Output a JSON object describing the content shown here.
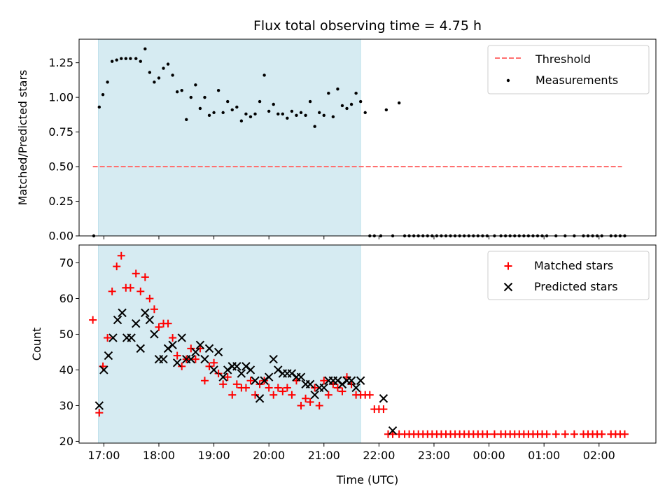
{
  "chart_data": [
    {
      "type": "scatter",
      "title": "Flux total observing time = 4.75 h",
      "xlabel": "",
      "ylabel": "Matched/Predicted stars",
      "xlim": [
        "16:33",
        "03:02"
      ],
      "ylim": [
        0,
        1.42
      ],
      "yticks": [
        "0.00",
        "0.25",
        "0.50",
        "0.75",
        "1.00",
        "1.25"
      ],
      "shaded_span": [
        "16:54",
        "21:40"
      ],
      "shade_color": "#add8e6",
      "legend_position": "top-right",
      "legend": [
        {
          "label": "Threshold",
          "marker": "dashed-line",
          "color": "#ff7070"
        },
        {
          "label": "Measurements",
          "marker": "dot",
          "color": "#000000"
        }
      ],
      "threshold": {
        "name": "Threshold",
        "value": 0.5,
        "x": [
          "16:48",
          "02:25"
        ],
        "color": "#ff7070"
      },
      "series": [
        {
          "name": "Measurements",
          "color": "#000000",
          "x": [
            "16:49",
            "16:55",
            "16:59",
            "17:04",
            "17:09",
            "17:14",
            "17:19",
            "17:24",
            "17:29",
            "17:35",
            "17:40",
            "17:45",
            "17:50",
            "17:55",
            "18:00",
            "18:05",
            "18:10",
            "18:15",
            "18:20",
            "18:25",
            "18:30",
            "18:35",
            "18:40",
            "18:45",
            "18:50",
            "18:55",
            "19:00",
            "19:05",
            "19:10",
            "19:15",
            "19:20",
            "19:25",
            "19:30",
            "19:35",
            "19:40",
            "19:45",
            "19:50",
            "19:55",
            "20:00",
            "20:05",
            "20:10",
            "20:15",
            "20:20",
            "20:25",
            "20:30",
            "20:35",
            "20:40",
            "20:45",
            "20:50",
            "20:55",
            "21:00",
            "21:05",
            "21:10",
            "21:15",
            "21:20",
            "21:25",
            "21:30",
            "21:35",
            "21:40",
            "21:45",
            "21:50",
            "21:55",
            "22:02",
            "22:08",
            "22:15",
            "22:22",
            "22:28",
            "22:33",
            "22:38",
            "22:43",
            "22:48",
            "22:53",
            "22:58",
            "23:03",
            "23:08",
            "23:13",
            "23:18",
            "23:23",
            "23:28",
            "23:33",
            "23:38",
            "23:43",
            "23:48",
            "23:53",
            "23:58",
            "00:06",
            "00:13",
            "00:18",
            "00:23",
            "00:28",
            "00:33",
            "00:38",
            "00:43",
            "00:48",
            "00:53",
            "00:58",
            "01:03",
            "01:13",
            "01:23",
            "01:33",
            "01:43",
            "01:48",
            "01:53",
            "01:58",
            "02:03",
            "02:13",
            "02:18",
            "02:23",
            "02:28"
          ],
          "y": [
            0.0,
            0.93,
            1.02,
            1.11,
            1.26,
            1.27,
            1.28,
            1.28,
            1.28,
            1.28,
            1.26,
            1.35,
            1.18,
            1.11,
            1.14,
            1.21,
            1.24,
            1.16,
            1.04,
            1.05,
            0.84,
            1.0,
            1.09,
            0.92,
            1.0,
            0.87,
            0.89,
            1.05,
            0.89,
            0.97,
            0.91,
            0.93,
            0.83,
            0.88,
            0.86,
            0.88,
            0.97,
            1.16,
            0.9,
            0.95,
            0.88,
            0.88,
            0.85,
            0.9,
            0.87,
            0.89,
            0.87,
            0.97,
            0.79,
            0.89,
            0.87,
            1.03,
            0.86,
            1.06,
            0.94,
            0.92,
            0.95,
            1.03,
            0.97,
            0.89,
            0.0,
            0.0,
            0.0,
            0.91,
            0.0,
            0.96,
            0.0,
            0.0,
            0.0,
            0.0,
            0.0,
            0.0,
            0.0,
            0.0,
            0.0,
            0.0,
            0.0,
            0.0,
            0.0,
            0.0,
            0.0,
            0.0,
            0.0,
            0.0,
            0.0,
            0.0,
            0.0,
            0.0,
            0.0,
            0.0,
            0.0,
            0.0,
            0.0,
            0.0,
            0.0,
            0.0,
            0.0,
            0.0,
            0.0,
            0.0,
            0.0,
            0.0,
            0.0,
            0.0,
            0.0,
            0.0,
            0.0,
            0.0,
            0.0
          ]
        }
      ]
    },
    {
      "type": "scatter",
      "title": "",
      "xlabel": "Time (UTC)",
      "ylabel": "Count",
      "xlim": [
        "16:33",
        "03:02"
      ],
      "ylim": [
        19.5,
        75
      ],
      "xticks": [
        "17:00",
        "18:00",
        "19:00",
        "20:00",
        "21:00",
        "22:00",
        "23:00",
        "00:00",
        "01:00",
        "02:00"
      ],
      "yticks": [
        "20",
        "30",
        "40",
        "50",
        "60",
        "70"
      ],
      "shaded_span": [
        "16:54",
        "21:40"
      ],
      "shade_color": "#add8e6",
      "legend_position": "top-right",
      "legend": [
        {
          "label": "Matched stars",
          "marker": "plus",
          "color": "#ff0000"
        },
        {
          "label": "Predicted stars",
          "marker": "x",
          "color": "#000000"
        }
      ],
      "series": [
        {
          "name": "Matched stars",
          "color": "#ff0000",
          "marker": "plus",
          "x": [
            "16:48",
            "16:55",
            "16:59",
            "17:04",
            "17:09",
            "17:14",
            "17:19",
            "17:24",
            "17:29",
            "17:35",
            "17:40",
            "17:45",
            "17:50",
            "17:55",
            "18:00",
            "18:05",
            "18:10",
            "18:15",
            "18:20",
            "18:25",
            "18:30",
            "18:35",
            "18:40",
            "18:45",
            "18:50",
            "18:55",
            "19:00",
            "19:05",
            "19:10",
            "19:15",
            "19:20",
            "19:25",
            "19:30",
            "19:35",
            "19:40",
            "19:45",
            "19:50",
            "19:55",
            "20:00",
            "20:05",
            "20:10",
            "20:15",
            "20:20",
            "20:25",
            "20:30",
            "20:35",
            "20:40",
            "20:45",
            "20:50",
            "20:55",
            "21:00",
            "21:05",
            "21:10",
            "21:15",
            "21:20",
            "21:25",
            "21:30",
            "21:35",
            "21:40",
            "21:45",
            "21:50",
            "21:55",
            "22:00",
            "22:05",
            "22:10",
            "22:15",
            "22:22",
            "22:28",
            "22:33",
            "22:38",
            "22:43",
            "22:48",
            "22:53",
            "22:58",
            "23:03",
            "23:08",
            "23:13",
            "23:18",
            "23:23",
            "23:28",
            "23:33",
            "23:38",
            "23:43",
            "23:48",
            "23:53",
            "23:58",
            "00:06",
            "00:13",
            "00:18",
            "00:23",
            "00:28",
            "00:33",
            "00:38",
            "00:43",
            "00:48",
            "00:53",
            "00:58",
            "01:03",
            "01:13",
            "01:23",
            "01:33",
            "01:43",
            "01:48",
            "01:53",
            "01:58",
            "02:03",
            "02:13",
            "02:18",
            "02:23",
            "02:28"
          ],
          "y": [
            54,
            28,
            41,
            49,
            62,
            69,
            72,
            63,
            63,
            67,
            62,
            66,
            60,
            57,
            52,
            53,
            53,
            49,
            44,
            41,
            43,
            46,
            43,
            46,
            37,
            41,
            42,
            39,
            36,
            38,
            33,
            36,
            35,
            35,
            37,
            33,
            36,
            37,
            35,
            33,
            35,
            34,
            35,
            33,
            37,
            30,
            32,
            31,
            35,
            30,
            37,
            33,
            36,
            35,
            34,
            38,
            36,
            33,
            33,
            33,
            33,
            29,
            29,
            29,
            22,
            22,
            22,
            22,
            22,
            22,
            22,
            22,
            22,
            22,
            22,
            22,
            22,
            22,
            22,
            22,
            22,
            22,
            22,
            22,
            22,
            22,
            22,
            22,
            22,
            22,
            22,
            22,
            22,
            22,
            22,
            22,
            22,
            22,
            22,
            22,
            22,
            22,
            22,
            22,
            22,
            22,
            22,
            22,
            22,
            22
          ]
        },
        {
          "name": "Predicted stars",
          "color": "#000000",
          "marker": "x",
          "x": [
            "16:55",
            "17:00",
            "17:05",
            "17:10",
            "17:15",
            "17:20",
            "17:25",
            "17:30",
            "17:35",
            "17:40",
            "17:45",
            "17:50",
            "17:55",
            "18:00",
            "18:05",
            "18:10",
            "18:15",
            "18:20",
            "18:25",
            "18:30",
            "18:35",
            "18:40",
            "18:45",
            "18:50",
            "18:55",
            "19:00",
            "19:05",
            "19:10",
            "19:15",
            "19:20",
            "19:25",
            "19:30",
            "19:35",
            "19:40",
            "19:45",
            "19:50",
            "19:55",
            "20:00",
            "20:05",
            "20:10",
            "20:15",
            "20:20",
            "20:25",
            "20:30",
            "20:35",
            "20:40",
            "20:45",
            "20:50",
            "20:55",
            "21:00",
            "21:05",
            "21:10",
            "21:15",
            "21:20",
            "21:25",
            "21:30",
            "21:35",
            "21:40",
            "22:05",
            "22:15"
          ],
          "y": [
            30,
            40,
            44,
            49,
            54,
            56,
            49,
            49,
            53,
            46,
            56,
            54,
            50,
            43,
            43,
            46,
            47,
            42,
            49,
            43,
            43,
            45,
            47,
            43,
            46,
            40,
            45,
            38,
            40,
            41,
            41,
            39,
            41,
            40,
            37,
            32,
            37,
            38,
            43,
            40,
            39,
            39,
            39,
            38,
            38,
            36,
            36,
            33,
            35,
            35,
            37,
            37,
            37,
            36,
            37,
            37,
            35,
            37,
            32,
            23
          ]
        }
      ]
    }
  ]
}
